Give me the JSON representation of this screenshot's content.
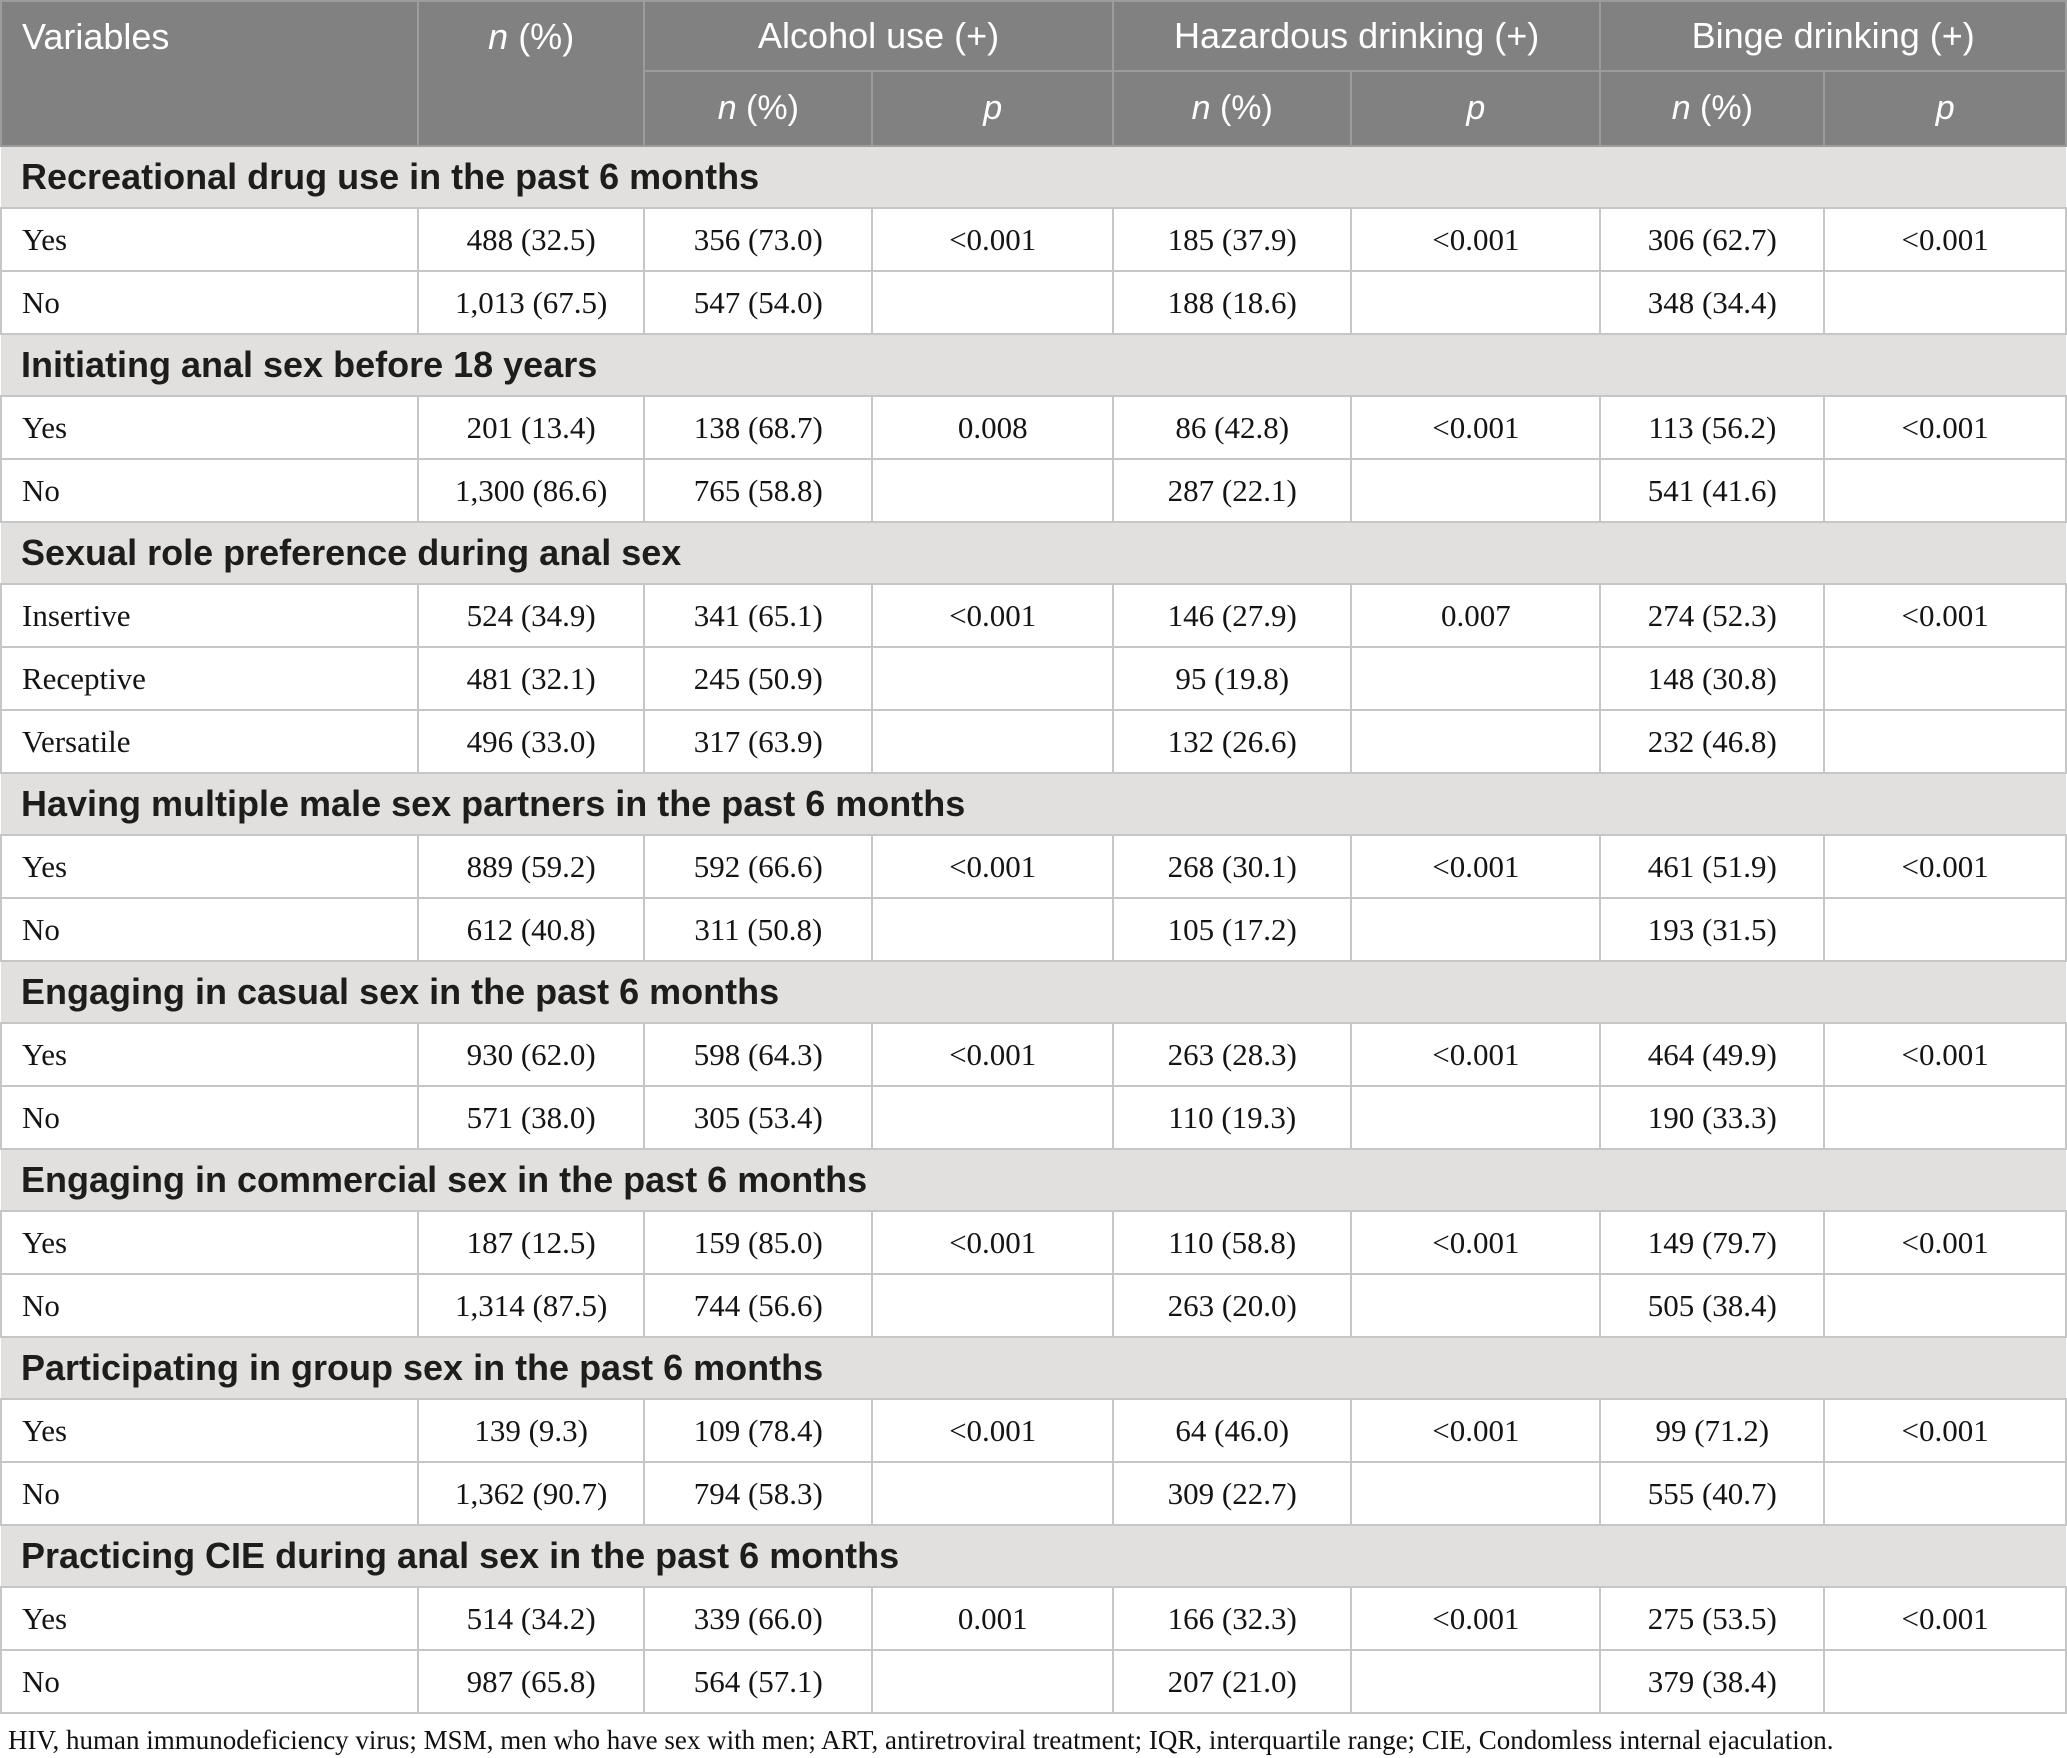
{
  "table": {
    "header": {
      "variables": "Variables",
      "n_pct": {
        "italic": "n",
        "rest": " (%)"
      },
      "groups": [
        {
          "label": "Alcohol use (+)"
        },
        {
          "label": "Hazardous drinking (+)"
        },
        {
          "label": "Binge drinking (+)"
        }
      ],
      "sub_n": {
        "italic": "n",
        "rest": " (%)"
      },
      "sub_p": "p"
    },
    "sections": [
      {
        "title": "Recreational drug use in the past 6 months",
        "rows": [
          {
            "label": "Yes",
            "values": [
              "488 (32.5)",
              "356 (73.0)",
              "<0.001",
              "185 (37.9)",
              "<0.001",
              "306 (62.7)",
              "<0.001"
            ]
          },
          {
            "label": "No",
            "values": [
              "1,013 (67.5)",
              "547 (54.0)",
              "",
              "188 (18.6)",
              "",
              "348 (34.4)",
              ""
            ]
          }
        ]
      },
      {
        "title": "Initiating anal sex before 18 years",
        "rows": [
          {
            "label": "Yes",
            "values": [
              "201 (13.4)",
              "138 (68.7)",
              "0.008",
              "86 (42.8)",
              "<0.001",
              "113 (56.2)",
              "<0.001"
            ]
          },
          {
            "label": "No",
            "values": [
              "1,300 (86.6)",
              "765 (58.8)",
              "",
              "287 (22.1)",
              "",
              "541 (41.6)",
              ""
            ]
          }
        ]
      },
      {
        "title": "Sexual role preference during anal sex",
        "rows": [
          {
            "label": "Insertive",
            "values": [
              "524 (34.9)",
              "341 (65.1)",
              "<0.001",
              "146 (27.9)",
              "0.007",
              "274 (52.3)",
              "<0.001"
            ]
          },
          {
            "label": "Receptive",
            "values": [
              "481 (32.1)",
              "245 (50.9)",
              "",
              "95 (19.8)",
              "",
              "148 (30.8)",
              ""
            ]
          },
          {
            "label": "Versatile",
            "values": [
              "496 (33.0)",
              "317 (63.9)",
              "",
              "132 (26.6)",
              "",
              "232 (46.8)",
              ""
            ]
          }
        ]
      },
      {
        "title": "Having multiple male sex partners in the past 6 months",
        "rows": [
          {
            "label": "Yes",
            "values": [
              "889 (59.2)",
              "592 (66.6)",
              "<0.001",
              "268 (30.1)",
              "<0.001",
              "461 (51.9)",
              "<0.001"
            ]
          },
          {
            "label": "No",
            "values": [
              "612 (40.8)",
              "311 (50.8)",
              "",
              "105 (17.2)",
              "",
              "193 (31.5)",
              ""
            ]
          }
        ]
      },
      {
        "title": "Engaging in casual sex in the past 6 months",
        "rows": [
          {
            "label": "Yes",
            "values": [
              "930 (62.0)",
              "598 (64.3)",
              "<0.001",
              "263 (28.3)",
              "<0.001",
              "464 (49.9)",
              "<0.001"
            ]
          },
          {
            "label": "No",
            "values": [
              "571 (38.0)",
              "305 (53.4)",
              "",
              "110 (19.3)",
              "",
              "190 (33.3)",
              ""
            ]
          }
        ]
      },
      {
        "title": "Engaging in commercial sex in the past 6 months",
        "rows": [
          {
            "label": "Yes",
            "values": [
              "187 (12.5)",
              "159 (85.0)",
              "<0.001",
              "110 (58.8)",
              "<0.001",
              "149 (79.7)",
              "<0.001"
            ]
          },
          {
            "label": "No",
            "values": [
              "1,314 (87.5)",
              "744 (56.6)",
              "",
              "263 (20.0)",
              "",
              "505 (38.4)",
              ""
            ]
          }
        ]
      },
      {
        "title": "Participating in group sex in the past 6 months",
        "rows": [
          {
            "label": "Yes",
            "values": [
              "139 (9.3)",
              "109 (78.4)",
              "<0.001",
              "64 (46.0)",
              "<0.001",
              "99 (71.2)",
              "<0.001"
            ]
          },
          {
            "label": "No",
            "values": [
              "1,362 (90.7)",
              "794 (58.3)",
              "",
              "309 (22.7)",
              "",
              "555 (40.7)",
              ""
            ]
          }
        ]
      },
      {
        "title": "Practicing CIE during anal sex in the past 6 months",
        "rows": [
          {
            "label": "Yes",
            "values": [
              "514 (34.2)",
              "339 (66.0)",
              "0.001",
              "166 (32.3)",
              "<0.001",
              "275 (53.5)",
              "<0.001"
            ]
          },
          {
            "label": "No",
            "values": [
              "987 (65.8)",
              "564 (57.1)",
              "",
              "207 (21.0)",
              "",
              "379 (38.4)",
              ""
            ]
          }
        ]
      }
    ],
    "footnote": "HIV, human immunodeficiency virus; MSM, men who have sex with men; ART, antiretroviral treatment; IQR, interquartile range; CIE, Condomless internal ejaculation."
  }
}
